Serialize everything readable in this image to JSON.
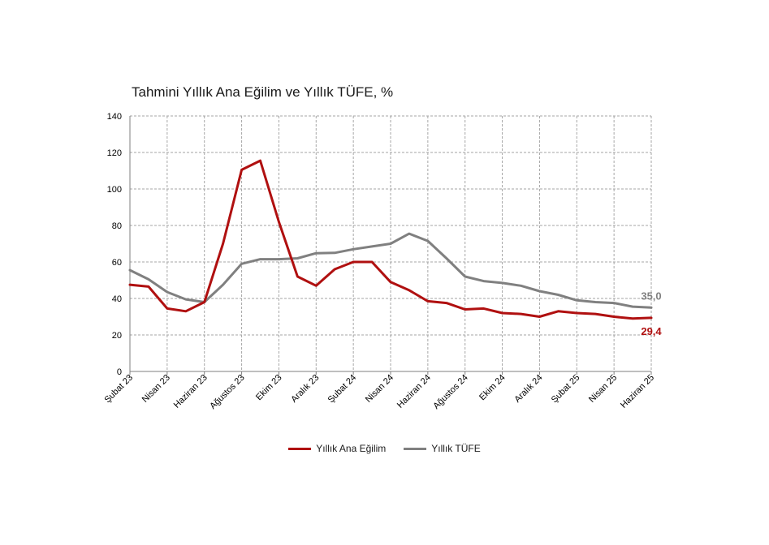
{
  "chart_data": {
    "type": "line",
    "title": "Tahmini Yıllık Ana Eğilim ve Yıllık TÜFE, %",
    "xlabel": "",
    "ylabel": "",
    "ylim": [
      0,
      140
    ],
    "yticks": [
      0,
      20,
      40,
      60,
      80,
      100,
      120,
      140
    ],
    "grid": true,
    "legend_position": "bottom-center",
    "x": [
      "Şubat 23",
      "Mart 23",
      "Nisan 23",
      "Mayıs 23",
      "Haziran 23",
      "Temmuz 23",
      "Ağustos 23",
      "Eylül 23",
      "Ekim 23",
      "Kasım 23",
      "Aralık 23",
      "Ocak 24",
      "Şubat 24",
      "Mart 24",
      "Nisan 24",
      "Mayıs 24",
      "Haziran 24",
      "Temmuz 24",
      "Ağustos 24",
      "Eylül 24",
      "Ekim 24",
      "Kasım 24",
      "Aralık 24",
      "Ocak 25",
      "Şubat 25",
      "Mart 25",
      "Nisan 25",
      "Mayıs 25",
      "Haziran 25"
    ],
    "x_tick_labels": [
      "Şubat 23",
      "Nisan 23",
      "Haziran 23",
      "Ağustos 23",
      "Ekim 23",
      "Aralık 23",
      "Şubat 24",
      "Nisan 24",
      "Haziran 24",
      "Ağustos 24",
      "Ekim 24",
      "Aralık 24",
      "Şubat 25",
      "Nisan 25",
      "Haziran 25"
    ],
    "series": [
      {
        "name": "Yıllık Ana Eğilim",
        "color": "#b01010",
        "values": [
          47.5,
          46.5,
          34.5,
          33.0,
          38.0,
          70.0,
          110.5,
          115.5,
          82.0,
          52.0,
          47.0,
          56.0,
          60.0,
          60.0,
          49.0,
          44.5,
          38.5,
          37.5,
          34.0,
          34.5,
          32.0,
          31.5,
          30.0,
          33.0,
          32.0,
          31.5,
          30.0,
          29.0,
          29.4
        ],
        "end_label": "29,4"
      },
      {
        "name": "Yıllık TÜFE",
        "color": "#808080",
        "values": [
          55.5,
          50.5,
          43.5,
          39.5,
          38.0,
          47.5,
          59.0,
          61.5,
          61.5,
          62.0,
          64.8,
          65.0,
          67.0,
          68.5,
          70.0,
          75.5,
          71.5,
          62.0,
          52.0,
          49.5,
          48.5,
          47.0,
          44.0,
          42.0,
          39.0,
          38.0,
          37.5,
          35.5,
          35.0
        ],
        "end_label": "35,0"
      }
    ]
  }
}
